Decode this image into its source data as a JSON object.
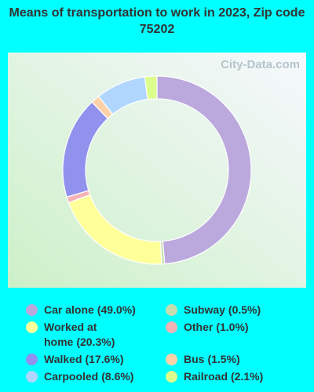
{
  "chart_data": {
    "type": "donut",
    "title": "Means of transportation to work in 2023, Zip code 75202",
    "watermark": "City-Data.com",
    "categories": [
      "Car alone",
      "Subway",
      "Worked at home",
      "Other",
      "Walked",
      "Bus",
      "Carpooled",
      "Railroad"
    ],
    "values": [
      49.0,
      0.5,
      20.3,
      1.0,
      17.6,
      1.5,
      8.6,
      2.1
    ],
    "value_labels": [
      "(49.0%)",
      "(0.5%)",
      "(20.3%)",
      "(1.0%)",
      "(17.6%)",
      "(1.5%)",
      "(8.6%)",
      "(2.1%)"
    ],
    "colors": [
      "#bba8dc",
      "#c5dcb0",
      "#ffff9a",
      "#f4b2b6",
      "#9191ee",
      "#fed2a8",
      "#b0d6fd",
      "#dcfe8c"
    ]
  }
}
